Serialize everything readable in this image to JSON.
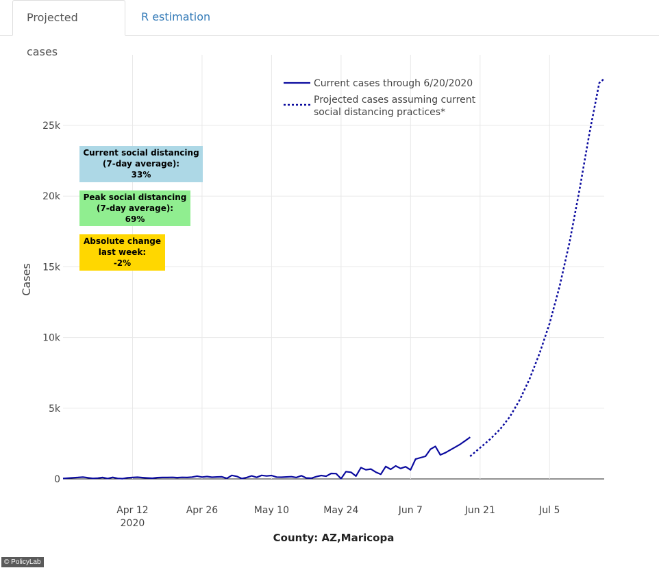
{
  "tabs": [
    {
      "label": "Projected cases",
      "active": true
    },
    {
      "label": "R estimation",
      "active": false
    }
  ],
  "badges": {
    "current": {
      "line1": "Current social distancing",
      "line2": "(7-day average):",
      "value": "33%",
      "color": "#add8e6"
    },
    "peak": {
      "line1": "Peak social distancing",
      "line2": "(7-day average):",
      "value": "69%",
      "color": "#90ee90"
    },
    "change": {
      "line1": "Absolute change",
      "line2": "last week:",
      "value": "-2%",
      "color": "#ffd700"
    }
  },
  "watermark": "© PolicyLab",
  "chart_data": {
    "type": "line",
    "title": "",
    "xlabel": "County: AZ,Maricopa",
    "ylabel": "Cases",
    "x_unit": "days since 2020-03-29",
    "xlim": [
      0,
      109
    ],
    "ylim": [
      -500,
      28500
    ],
    "yticks": [
      0,
      5000,
      10000,
      15000,
      20000,
      25000
    ],
    "ytick_labels": [
      "0",
      "5k",
      "10k",
      "15k",
      "20k",
      "25k"
    ],
    "xticks": [
      {
        "x": 14,
        "label": "Apr 12",
        "sublabel": "2020"
      },
      {
        "x": 28,
        "label": "Apr 26",
        "sublabel": ""
      },
      {
        "x": 42,
        "label": "May 10",
        "sublabel": ""
      },
      {
        "x": 56,
        "label": "May 24",
        "sublabel": ""
      },
      {
        "x": 70,
        "label": "Jun 7",
        "sublabel": ""
      },
      {
        "x": 84,
        "label": "Jun 21",
        "sublabel": ""
      },
      {
        "x": 98,
        "label": "Jul 5",
        "sublabel": ""
      }
    ],
    "legend_position": "top-right",
    "series": [
      {
        "name": "Current cases through 6/20/2020",
        "style": "solid",
        "color": "#0a0a9e",
        "x": [
          0,
          1,
          2,
          3,
          4,
          5,
          6,
          7,
          8,
          9,
          10,
          11,
          12,
          13,
          14,
          15,
          16,
          17,
          18,
          19,
          20,
          21,
          22,
          23,
          24,
          25,
          26,
          27,
          28,
          29,
          30,
          31,
          32,
          33,
          34,
          35,
          36,
          37,
          38,
          39,
          40,
          41,
          42,
          43,
          44,
          45,
          46,
          47,
          48,
          49,
          50,
          51,
          52,
          53,
          54,
          55,
          56,
          57,
          58,
          59,
          60,
          61,
          62,
          63,
          64,
          65,
          66,
          67,
          68,
          69,
          70,
          71,
          72,
          73,
          74,
          75,
          76,
          77,
          78,
          79,
          80,
          81,
          82
        ],
        "y": [
          30,
          60,
          80,
          100,
          130,
          80,
          40,
          60,
          100,
          30,
          110,
          40,
          20,
          80,
          100,
          120,
          90,
          70,
          50,
          90,
          100,
          100,
          110,
          90,
          110,
          100,
          130,
          200,
          130,
          170,
          120,
          140,
          150,
          40,
          250,
          180,
          30,
          100,
          220,
          110,
          250,
          210,
          240,
          130,
          120,
          140,
          160,
          100,
          230,
          70,
          50,
          160,
          240,
          190,
          390,
          380,
          20,
          520,
          470,
          200,
          800,
          650,
          700,
          480,
          330,
          880,
          680,
          920,
          740,
          860,
          640,
          1400,
          1500,
          1600,
          2100,
          2300,
          1700,
          1850,
          2050,
          2250,
          2450,
          2700,
          2950
        ]
      },
      {
        "name": "Projected cases assuming current social distancing practices*",
        "style": "dotted",
        "color": "#0a0a9e",
        "x": [
          82,
          84,
          86,
          88,
          90,
          92,
          94,
          96,
          98,
          100,
          102,
          104,
          106,
          108,
          109
        ],
        "y": [
          1600,
          2200,
          2800,
          3500,
          4400,
          5600,
          7100,
          8900,
          11000,
          13600,
          16700,
          20400,
          24400,
          28000,
          28300
        ]
      }
    ]
  }
}
